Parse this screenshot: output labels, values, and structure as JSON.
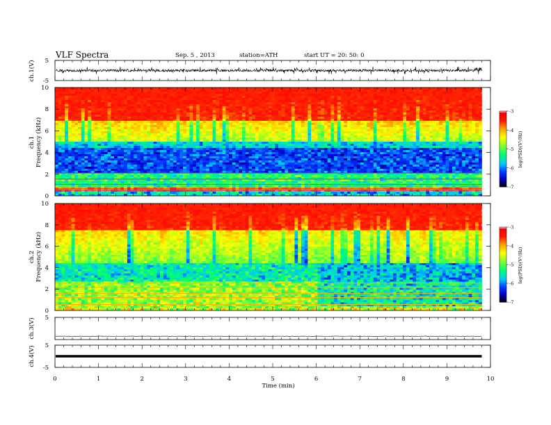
{
  "header": {
    "title": "VLF  Spectra",
    "date": "Sep. 5  , 2013",
    "station": "station=ATH",
    "start": "start  UT  =   20: 50: 0"
  },
  "chart_data": [
    {
      "type": "line",
      "panel": "ch1-waveform",
      "ylabel": "ch.1(V)",
      "yticks": [
        "5",
        "-5"
      ],
      "ylim": [
        -5,
        5
      ],
      "xlim": [
        0,
        10
      ],
      "data_end_min": 9.8,
      "amplitude_volts": 1.2,
      "color": "#000000"
    },
    {
      "type": "heatmap",
      "panel": "ch1-spectrogram",
      "ylabel_channel": "ch.1",
      "ylabel": "Frequency  (kHz)",
      "yticks": [
        "0",
        "2",
        "4",
        "6",
        "8",
        "10"
      ],
      "ylim": [
        0,
        10
      ],
      "xlim": [
        0,
        10
      ],
      "data_end_min": 9.8,
      "colorbar": {
        "label": "log(PSD)(V²/Hz)",
        "ticks": [
          "-3",
          "-4",
          "-5",
          "-6",
          "-7"
        ],
        "range": [
          -7,
          -3
        ],
        "colors": [
          "#000000",
          "#0000ff",
          "#00c8ff",
          "#00ff64",
          "#ffff00",
          "#ff8000",
          "#ff0000",
          "#ffffff"
        ]
      }
    },
    {
      "type": "heatmap",
      "panel": "ch2-spectrogram",
      "ylabel_channel": "ch.2",
      "ylabel": "Frequency  (kHz)",
      "yticks": [
        "0",
        "2",
        "4",
        "6",
        "8",
        "10"
      ],
      "ylim": [
        0,
        10
      ],
      "xlim": [
        0,
        10
      ],
      "data_end_min": 9.8,
      "colorbar": {
        "label": "log(PSD)(V²/Hz)",
        "ticks": [
          "-3",
          "-4",
          "-5",
          "-6",
          "-7"
        ],
        "range": [
          -7,
          -3
        ]
      }
    },
    {
      "type": "line",
      "panel": "ch3-waveform",
      "ylabel": "ch.3(V)",
      "yticks": [
        "5"
      ],
      "ylim": [
        -5,
        5
      ],
      "xlim": [
        0,
        10
      ],
      "data_end_min": 9.8,
      "amplitude_volts": 0.15,
      "offset_volts": -3.5,
      "color": "#000000"
    },
    {
      "type": "line",
      "panel": "ch4-waveform",
      "ylabel": "ch.4(V)",
      "yticks": [
        "5",
        "-5"
      ],
      "ylim": [
        -5,
        5
      ],
      "xlim": [
        0,
        10
      ],
      "data_end_min": 9.8,
      "amplitude_volts": 0,
      "color": "#000000"
    }
  ],
  "xaxis": {
    "label": "Time  (min)",
    "ticks": [
      "0",
      "1",
      "2",
      "3",
      "4",
      "5",
      "6",
      "7",
      "8",
      "9",
      "10"
    ]
  }
}
